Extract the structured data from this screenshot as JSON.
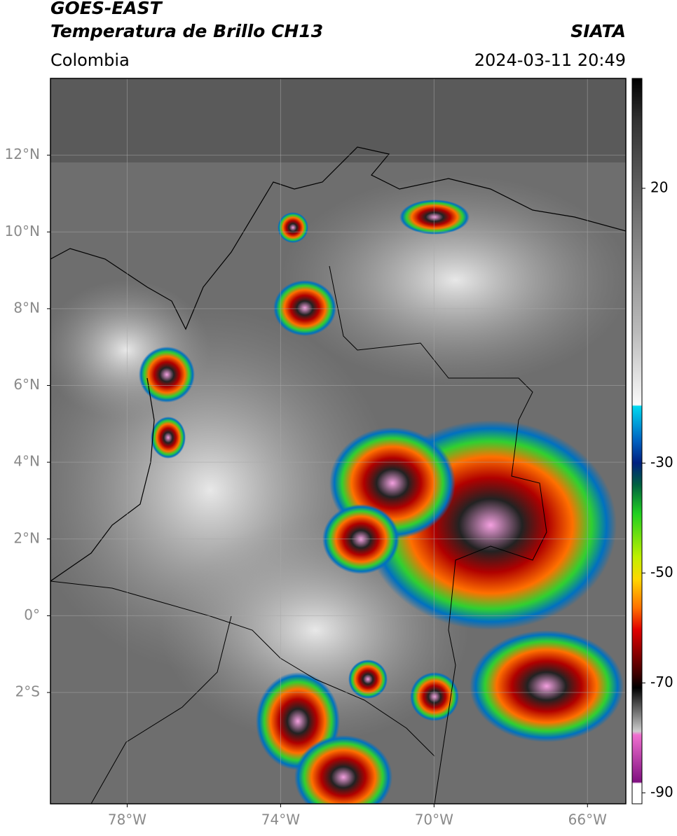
{
  "header": {
    "title": "GOES-EAST",
    "subtitle": "Temperatura de Brillo CH13",
    "region": "Colombia",
    "source": "SIATA",
    "datetime": "2024-03-11 20:49"
  },
  "map": {
    "xlim": [
      -80,
      -65
    ],
    "ylim": [
      -4.9,
      14
    ],
    "xticks": [
      {
        "value": -78,
        "label": "78°W"
      },
      {
        "value": -74,
        "label": "74°W"
      },
      {
        "value": -70,
        "label": "70°W"
      },
      {
        "value": -66,
        "label": "66°W"
      }
    ],
    "yticks": [
      {
        "value": -2,
        "label": "2°S"
      },
      {
        "value": 0,
        "label": "0°"
      },
      {
        "value": 2,
        "label": "2°N"
      },
      {
        "value": 4,
        "label": "4°N"
      },
      {
        "value": 6,
        "label": "6°N"
      },
      {
        "value": 8,
        "label": "8°N"
      },
      {
        "value": 10,
        "label": "10°N"
      },
      {
        "value": 12,
        "label": "12°N"
      }
    ]
  },
  "colorbar": {
    "lim": [
      -92,
      40
    ],
    "ticks": [
      20,
      -30,
      -50,
      -70,
      -90
    ]
  }
}
